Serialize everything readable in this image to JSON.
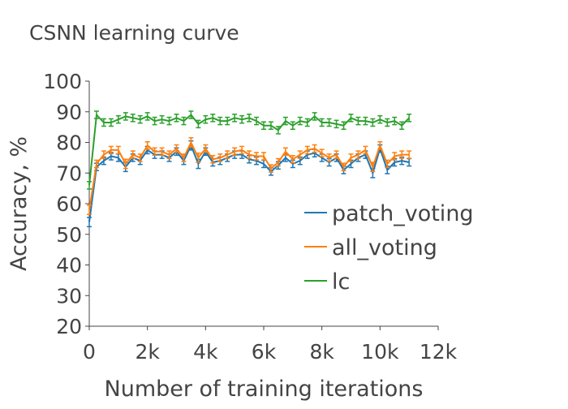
{
  "chart_data": {
    "type": "line",
    "title": "CSNN learning curve",
    "xlabel": "Number of training iterations",
    "ylabel": "Accuracy, %",
    "xlim": [
      0,
      12000
    ],
    "ylim": [
      20,
      100
    ],
    "xticks": [
      0,
      2000,
      4000,
      6000,
      8000,
      10000,
      12000
    ],
    "xtick_labels": [
      "0",
      "2k",
      "4k",
      "6k",
      "8k",
      "10k",
      "12k"
    ],
    "yticks": [
      20,
      30,
      40,
      50,
      60,
      70,
      80,
      90,
      100
    ],
    "ytick_labels": [
      "20",
      "30",
      "40",
      "50",
      "60",
      "70",
      "80",
      "90",
      "100"
    ],
    "grid": false,
    "legend_position": "right",
    "x": [
      0,
      250,
      500,
      750,
      1000,
      1250,
      1500,
      1750,
      2000,
      2250,
      2500,
      2750,
      3000,
      3250,
      3500,
      3750,
      4000,
      4250,
      4500,
      4750,
      5000,
      5250,
      5500,
      5750,
      6000,
      6250,
      6500,
      6750,
      7000,
      7250,
      7500,
      7750,
      8000,
      8250,
      8500,
      8750,
      9000,
      9250,
      9500,
      9750,
      10000,
      10250,
      10500,
      10750,
      11000
    ],
    "series": [
      {
        "name": "patch_voting",
        "color": "#1f77b4",
        "values": [
          54,
          72,
          74,
          75.5,
          75,
          72,
          75,
          74,
          77.5,
          76,
          76,
          75,
          77,
          74,
          79,
          73,
          77,
          73.5,
          74,
          75,
          76,
          76,
          74.5,
          74,
          73,
          70.5,
          72.5,
          75,
          73,
          74,
          76,
          76.5,
          75,
          73.5,
          75,
          71,
          73,
          75,
          76,
          70,
          78,
          71,
          73.5,
          74,
          73.5
        ],
        "error": [
          1.5,
          1.2,
          1.2,
          1.2,
          1.2,
          1.5,
          1.2,
          1.2,
          1.2,
          1.2,
          1.2,
          1.2,
          1.2,
          1.2,
          1.5,
          1.5,
          1.2,
          1.2,
          1.2,
          1.2,
          1.2,
          1.2,
          1.2,
          1.2,
          1.2,
          1.2,
          1.2,
          1.2,
          1.2,
          1.2,
          1.2,
          1.2,
          1.2,
          1.2,
          1.2,
          1.2,
          1.2,
          1.2,
          1.2,
          1.5,
          1.2,
          1.2,
          1.2,
          1.2,
          1.2
        ]
      },
      {
        "name": "all_voting",
        "color": "#ff7f0e",
        "values": [
          58,
          73,
          76,
          77.5,
          77.5,
          73,
          76,
          75,
          79,
          77,
          77,
          76,
          78,
          75,
          80,
          75,
          78,
          74.5,
          75,
          76,
          77,
          77.5,
          76,
          75.5,
          75.5,
          71.5,
          73.5,
          77,
          74.5,
          76,
          77.5,
          78,
          76.5,
          75,
          76,
          72,
          75,
          76,
          77.5,
          72,
          79,
          73,
          75.5,
          76,
          76
        ],
        "error": [
          1.5,
          1.2,
          1.2,
          1.2,
          1.2,
          1.5,
          1.2,
          1.2,
          1.2,
          1.2,
          1.2,
          1.2,
          1.2,
          1.2,
          1.5,
          1.5,
          1.2,
          1.2,
          1.2,
          1.2,
          1.2,
          1.2,
          1.2,
          1.2,
          1.2,
          1.2,
          1.2,
          1.2,
          1.2,
          1.2,
          1.2,
          1.2,
          1.2,
          1.2,
          1.2,
          1.2,
          1.2,
          1.2,
          1.2,
          1.5,
          1.2,
          1.2,
          1.2,
          1.2,
          1.2
        ]
      },
      {
        "name": "lc",
        "color": "#2ca02c",
        "values": [
          66,
          89,
          86.5,
          86.5,
          87.5,
          88.5,
          88,
          87.5,
          88.5,
          87,
          87.5,
          87,
          88,
          87,
          89,
          86,
          87.5,
          88,
          87,
          87,
          88,
          87.5,
          88,
          87,
          85.5,
          85.5,
          84,
          87,
          85.5,
          87,
          86.5,
          88.5,
          86.5,
          86.5,
          86,
          85.5,
          88,
          87,
          87,
          86.5,
          87.5,
          86.5,
          87,
          85.5,
          88
        ],
        "error": [
          1.2,
          1.2,
          1.2,
          1.2,
          1.2,
          1.2,
          1.2,
          1.2,
          1.2,
          1.2,
          1.2,
          1.2,
          1.2,
          1.2,
          1.2,
          1.2,
          1.2,
          1.2,
          1.2,
          1.2,
          1.2,
          1.2,
          1.2,
          1.2,
          1.2,
          1.2,
          1.2,
          1.2,
          1.2,
          1.2,
          1.2,
          1.2,
          1.2,
          1.2,
          1.2,
          1.2,
          1.2,
          1.2,
          1.2,
          1.2,
          1.2,
          1.2,
          1.2,
          1.2,
          1.2
        ]
      }
    ]
  }
}
